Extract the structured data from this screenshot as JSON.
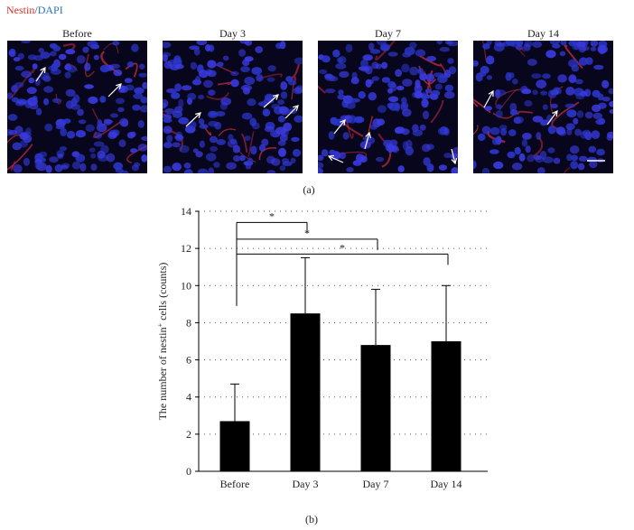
{
  "legend": {
    "nestin": "Nestin",
    "slash": "/",
    "dapi": "DAPI",
    "colors": {
      "nestin": "#d4302a",
      "dapi": "#2a6fc0"
    }
  },
  "panels": [
    {
      "title": "Before",
      "arrows": 2,
      "scale_bar": false
    },
    {
      "title": "Day 3",
      "arrows": 3,
      "scale_bar": false
    },
    {
      "title": "Day 7",
      "arrows": 4,
      "scale_bar": false
    },
    {
      "title": "Day 14",
      "arrows": 2,
      "scale_bar": true
    }
  ],
  "caption_a": "(a)",
  "caption_b": "(b)",
  "chart_data": {
    "type": "bar",
    "categories": [
      "Before",
      "Day 3",
      "Day 7",
      "Day 14"
    ],
    "values": [
      2.7,
      8.5,
      6.8,
      7.0
    ],
    "error_upper": [
      4.7,
      11.5,
      9.8,
      10.0
    ],
    "ylabel_pre": "The number of nestin",
    "ylabel_sup": "+",
    "ylabel_post": " cells (counts)",
    "xlabel": "",
    "ylim": [
      0,
      14
    ],
    "yticks": [
      0,
      2,
      4,
      6,
      8,
      10,
      12,
      14
    ],
    "grid": "dotted horizontal",
    "bar_color": "#000000",
    "significance": [
      {
        "from": "Before",
        "to": "Day 3",
        "label": "*",
        "y": 13.4
      },
      {
        "from": "Before",
        "to": "Day 7",
        "label": "*",
        "y": 12.5
      },
      {
        "from": "Before",
        "to": "Day 14",
        "label": "*",
        "y": 11.7
      }
    ]
  }
}
